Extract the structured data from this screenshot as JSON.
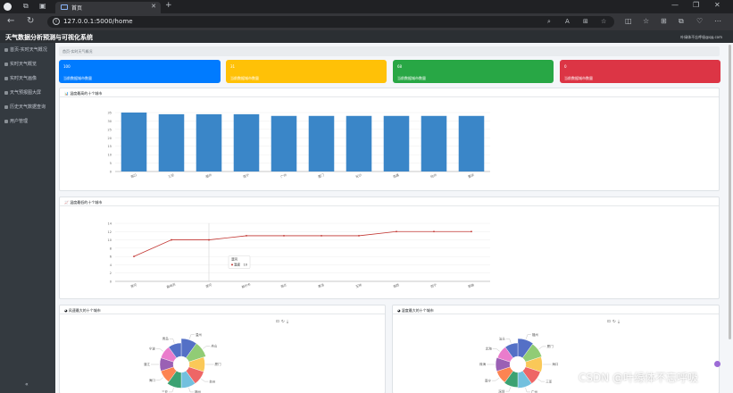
{
  "browser": {
    "tab_title": "首页",
    "url": "127.0.0.1:5000/home"
  },
  "app": {
    "title": "天气数据分析预测与可视化系统",
    "user_email": "叶绿体不忘呼吸@qq.com"
  },
  "sidebar": {
    "items": [
      {
        "label": "首页-实时天气概况"
      },
      {
        "label": "实时天气概览"
      },
      {
        "label": "实时天气画像"
      },
      {
        "label": "天气预报图大屏"
      },
      {
        "label": "历史天气数据查询"
      },
      {
        "label": "用户管理"
      }
    ],
    "collapse": "«"
  },
  "breadcrumb": "首页-实时天气概况",
  "stats": [
    {
      "value": "100",
      "label": "当前数据城市数量",
      "color": "#007bff"
    },
    {
      "value": "31",
      "label": "当前数据城市数量",
      "color": "#ffc107"
    },
    {
      "value": "68",
      "label": "当前数据城市数量",
      "color": "#28a745"
    },
    {
      "value": "0",
      "label": "当前数据城市数量",
      "color": "#dc3545"
    }
  ],
  "cards": {
    "bar": {
      "title": "温度最高的十个城市"
    },
    "line": {
      "title": "温度最低的十个城市"
    },
    "pie1": {
      "title": "风速最大的十个城市"
    },
    "pie2": {
      "title": "湿度最大的十个城市"
    }
  },
  "chart_data": [
    {
      "type": "bar",
      "categories": [
        "海口",
        "三亚",
        "福州",
        "南宁",
        "广州",
        "厦门",
        "长沙",
        "南昌",
        "杭州",
        "重庆"
      ],
      "values": [
        35,
        34,
        34,
        34,
        33,
        33,
        33,
        33,
        33,
        33
      ],
      "ylim": [
        0,
        35
      ],
      "yticks": [
        0,
        5,
        10,
        15,
        20,
        25,
        30,
        35
      ],
      "color": "#3a86c8",
      "grid": true
    },
    {
      "type": "line",
      "categories": [
        "黑河",
        "嘉峪关",
        "漠河",
        "格尔木",
        "海北",
        "果洛",
        "玉树",
        "海西",
        "西宁",
        "那曲"
      ],
      "values": [
        6,
        10,
        10,
        11,
        11,
        11,
        11,
        12,
        12,
        12
      ],
      "ylim": [
        0,
        14
      ],
      "yticks": [
        0,
        2,
        4,
        6,
        8,
        10,
        12,
        14
      ],
      "color": "#c23531",
      "grid": true,
      "tooltip": {
        "category": "漠河",
        "series": "温度",
        "value": "10"
      }
    },
    {
      "type": "pie",
      "variant": "rose-donut",
      "categories": [
        "温州",
        "舟山",
        "厦门",
        "台州",
        "福州",
        "三亚",
        "海口",
        "湛江",
        "宁波",
        "青岛"
      ],
      "values": [
        10,
        10,
        9,
        9,
        9,
        9,
        8,
        8,
        8,
        8
      ],
      "colors": [
        "#5470c6",
        "#91cc75",
        "#fac858",
        "#ee6666",
        "#73c0de",
        "#3ba272",
        "#fc8452",
        "#9a60b4",
        "#ea7ccc",
        "#5470c6"
      ],
      "toolbox": [
        "⊡",
        "↻",
        "⤓"
      ]
    },
    {
      "type": "pie",
      "variant": "rose-donut",
      "categories": [
        "福州",
        "厦门",
        "海口",
        "三亚",
        "广州",
        "深圳",
        "南宁",
        "珠海",
        "北海",
        "汕头"
      ],
      "values": [
        95,
        94,
        93,
        92,
        92,
        91,
        90,
        90,
        89,
        89
      ],
      "colors": [
        "#5470c6",
        "#91cc75",
        "#fac858",
        "#ee6666",
        "#73c0de",
        "#3ba272",
        "#fc8452",
        "#9a60b4",
        "#ea7ccc",
        "#5470c6"
      ],
      "toolbox": [
        "⊡",
        "↻",
        "⤓"
      ]
    }
  ],
  "watermark": "CSDN @叶绿体不忘呼吸"
}
